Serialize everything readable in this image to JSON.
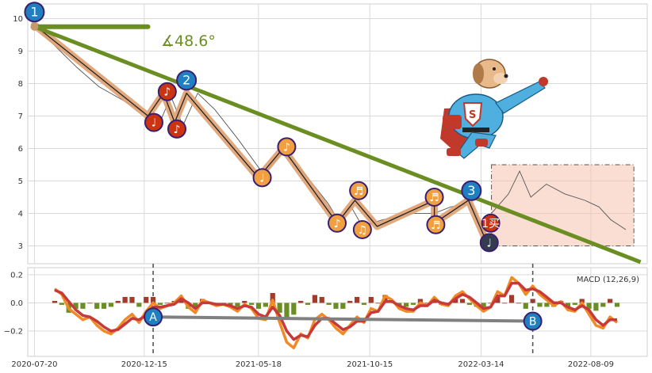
{
  "chart_data": [
    {
      "type": "line",
      "panel": "price",
      "ylim": [
        2.45,
        10.45
      ],
      "y_ticks": [
        3,
        4,
        5,
        6,
        7,
        8,
        9,
        10
      ],
      "x_tick_labels": [
        "2020-07-20",
        "2020-12-15",
        "2021-05-18",
        "2021-10-15",
        "2022-03-14",
        "2022-08-09"
      ],
      "x_tick_dates": [
        "2020-07-20",
        "2020-12-15",
        "2021-05-18",
        "2021-10-15",
        "2022-03-14",
        "2022-08-09"
      ],
      "xlim": [
        "2020-07-11",
        "2022-10-24"
      ],
      "grid": true,
      "series": [
        {
          "role": "price-line",
          "color": "#555555",
          "points": [
            [
              "2020-07-20",
              9.8
            ],
            [
              "2020-08-15",
              9.2
            ],
            [
              "2020-09-15",
              8.5
            ],
            [
              "2020-10-15",
              7.9
            ],
            [
              "2020-11-15",
              7.5
            ],
            [
              "2020-12-15",
              7.1
            ],
            [
              "2021-01-05",
              6.8
            ],
            [
              "2021-01-20",
              7.6
            ],
            [
              "2021-02-05",
              6.7
            ],
            [
              "2021-02-25",
              7.7
            ],
            [
              "2021-03-20",
              7.2
            ],
            [
              "2021-04-20",
              6.3
            ],
            [
              "2021-05-25",
              5.2
            ],
            [
              "2021-06-20",
              5.9
            ],
            [
              "2021-07-20",
              5.2
            ],
            [
              "2021-08-20",
              4.3
            ],
            [
              "2021-09-05",
              3.7
            ],
            [
              "2021-09-20",
              4.2
            ],
            [
              "2021-10-05",
              3.6
            ],
            [
              "2021-11-01",
              3.8
            ],
            [
              "2021-12-10",
              4.0
            ],
            [
              "2022-01-10",
              4.0
            ],
            [
              "2022-02-01",
              4.2
            ],
            [
              "2022-03-01",
              4.3
            ],
            [
              "2022-03-20",
              3.3
            ]
          ]
        },
        {
          "role": "wave-legs",
          "color": "#e0a070",
          "points": [
            [
              "2020-07-20",
              9.8
            ],
            [
              "2020-12-20",
              7.0
            ],
            [
              "2021-01-10",
              7.7
            ],
            [
              "2021-01-25",
              6.8
            ],
            [
              "2021-02-10",
              7.7
            ],
            [
              "2021-05-18",
              5.1
            ],
            [
              "2021-06-20",
              6.0
            ],
            [
              "2021-09-01",
              3.7
            ],
            [
              "2021-09-25",
              4.4
            ],
            [
              "2021-10-25",
              3.6
            ],
            [
              "2022-01-10",
              4.4
            ],
            [
              "2022-01-10",
              3.7
            ],
            [
              "2022-02-25",
              4.4
            ],
            [
              "2022-03-20",
              3.2
            ]
          ]
        },
        {
          "role": "hidden-zoom-box-series",
          "color": "#555555",
          "points": [
            [
              "2022-03-28",
              4.0
            ],
            [
              "2022-04-20",
              4.6
            ],
            [
              "2022-05-05",
              5.3
            ],
            [
              "2022-05-20",
              4.5
            ],
            [
              "2022-06-10",
              4.9
            ],
            [
              "2022-07-05",
              4.6
            ],
            [
              "2022-08-01",
              4.4
            ],
            [
              "2022-08-20",
              4.2
            ],
            [
              "2022-09-05",
              3.8
            ],
            [
              "2022-09-25",
              3.5
            ]
          ]
        }
      ],
      "trendline": {
        "color": "#6b8e23",
        "from": [
          "2020-07-20",
          9.75
        ],
        "to": [
          "2022-10-15",
          2.5
        ]
      },
      "angle_line": {
        "color": "#6b8e23",
        "from": [
          "2020-07-20",
          9.75
        ],
        "to": [
          "2020-12-20",
          9.75
        ]
      },
      "angle_label": "∡48.6°",
      "highlight_box": {
        "from": [
          "2022-03-28",
          3.0
        ],
        "to": [
          "2022-10-06",
          5.5
        ],
        "fill": "#f6c2ae",
        "stroke": "#555555"
      },
      "markers": [
        {
          "label": "1",
          "date": "2020-07-20",
          "y": 10.2,
          "color": "#1f7fc0"
        },
        {
          "label": "2",
          "date": "2021-02-10",
          "y": 8.1,
          "color": "#1f7fc0"
        },
        {
          "label": "3",
          "date": "2022-03-01",
          "y": 4.7,
          "color": "#1f7fc0"
        },
        {
          "label": "♪",
          "date": "2021-01-15",
          "y": 7.75,
          "color": "#cc3311"
        },
        {
          "label": "♩",
          "date": "2020-12-28",
          "y": 6.8,
          "color": "#cc3311"
        },
        {
          "label": "♪",
          "date": "2021-01-28",
          "y": 6.6,
          "color": "#cc3311"
        },
        {
          "label": "♪",
          "date": "2021-06-25",
          "y": 6.05,
          "color": "#f0a040"
        },
        {
          "label": "♩",
          "date": "2021-05-23",
          "y": 5.1,
          "color": "#f0a040"
        },
        {
          "label": "♬",
          "date": "2021-09-30",
          "y": 4.7,
          "color": "#f0a040"
        },
        {
          "label": "♪",
          "date": "2021-09-01",
          "y": 3.7,
          "color": "#f0a040"
        },
        {
          "label": "♫",
          "date": "2021-10-05",
          "y": 3.5,
          "color": "#f0a040"
        },
        {
          "label": "♬",
          "date": "2022-01-10",
          "y": 4.5,
          "color": "#f0a040"
        },
        {
          "label": "♬",
          "date": "2022-01-12",
          "y": 3.65,
          "color": "#f0a040"
        },
        {
          "label": "1买",
          "date": "2022-03-27",
          "y": 3.7,
          "color": "#cc3311"
        },
        {
          "label": "♩",
          "date": "2022-03-25",
          "y": 3.1,
          "color": "#333c4f"
        }
      ],
      "mascot": "superhero-dog"
    },
    {
      "type": "bar",
      "panel": "macd",
      "legend": "MACD (12,26,9)",
      "legend_position": "top-right",
      "ylim": [
        -0.38,
        0.25
      ],
      "y_ticks": [
        -0.2,
        0.0,
        0.2
      ],
      "y_tick_labels": [
        "−0.2",
        "0.0",
        "0.2"
      ],
      "grid": true,
      "dif": [
        0.1,
        0.06,
        -0.04,
        -0.08,
        -0.12,
        -0.1,
        -0.16,
        -0.2,
        -0.22,
        -0.18,
        -0.12,
        -0.08,
        -0.14,
        -0.06,
        0.0,
        -0.04,
        -0.02,
        0.0,
        0.05,
        -0.03,
        -0.07,
        0.02,
        0.0,
        -0.02,
        -0.01,
        -0.03,
        -0.06,
        -0.01,
        -0.04,
        -0.11,
        -0.12,
        0.02,
        -0.14,
        -0.28,
        -0.32,
        -0.22,
        -0.25,
        -0.12,
        -0.08,
        -0.12,
        -0.18,
        -0.22,
        -0.16,
        -0.1,
        -0.14,
        -0.04,
        -0.06,
        0.05,
        0.02,
        -0.04,
        -0.06,
        -0.06,
        0.0,
        -0.02,
        0.04,
        -0.01,
        -0.02,
        0.05,
        0.08,
        0.03,
        -0.02,
        -0.06,
        -0.03,
        0.08,
        0.05,
        0.18,
        0.14,
        0.06,
        0.12,
        0.06,
        0.02,
        -0.02,
        0.01,
        -0.05,
        -0.06,
        0.0,
        -0.08,
        -0.16,
        -0.18,
        -0.1,
        -0.14
      ],
      "dea": [
        0.09,
        0.07,
        0.01,
        -0.05,
        -0.09,
        -0.1,
        -0.13,
        -0.17,
        -0.2,
        -0.19,
        -0.15,
        -0.11,
        -0.12,
        -0.09,
        -0.03,
        -0.03,
        -0.02,
        -0.01,
        0.03,
        0.0,
        -0.04,
        0.0,
        0.0,
        -0.01,
        -0.01,
        -0.02,
        -0.04,
        -0.02,
        -0.03,
        -0.08,
        -0.1,
        -0.03,
        -0.09,
        -0.2,
        -0.26,
        -0.23,
        -0.24,
        -0.16,
        -0.11,
        -0.11,
        -0.15,
        -0.19,
        -0.17,
        -0.13,
        -0.13,
        -0.07,
        -0.06,
        0.01,
        0.01,
        -0.02,
        -0.04,
        -0.05,
        -0.02,
        -0.02,
        0.02,
        0.0,
        -0.01,
        0.03,
        0.06,
        0.04,
        0.0,
        -0.04,
        -0.03,
        0.05,
        0.05,
        0.14,
        0.14,
        0.09,
        0.1,
        0.08,
        0.04,
        0.0,
        0.0,
        -0.03,
        -0.05,
        -0.02,
        -0.05,
        -0.12,
        -0.16,
        -0.12,
        -0.12
      ],
      "dif_color": "#f08a24",
      "dea_color": "#c83a3a",
      "hist_pos_color": "#a33a2a",
      "hist_neg_color": "#6b8e23",
      "divergence": {
        "color": "#808080",
        "from_index": 14,
        "from_y": -0.1,
        "to_index": 68,
        "to_y": -0.13,
        "labels": [
          "A",
          "B"
        ]
      },
      "vlines_index": [
        14,
        68
      ]
    }
  ]
}
